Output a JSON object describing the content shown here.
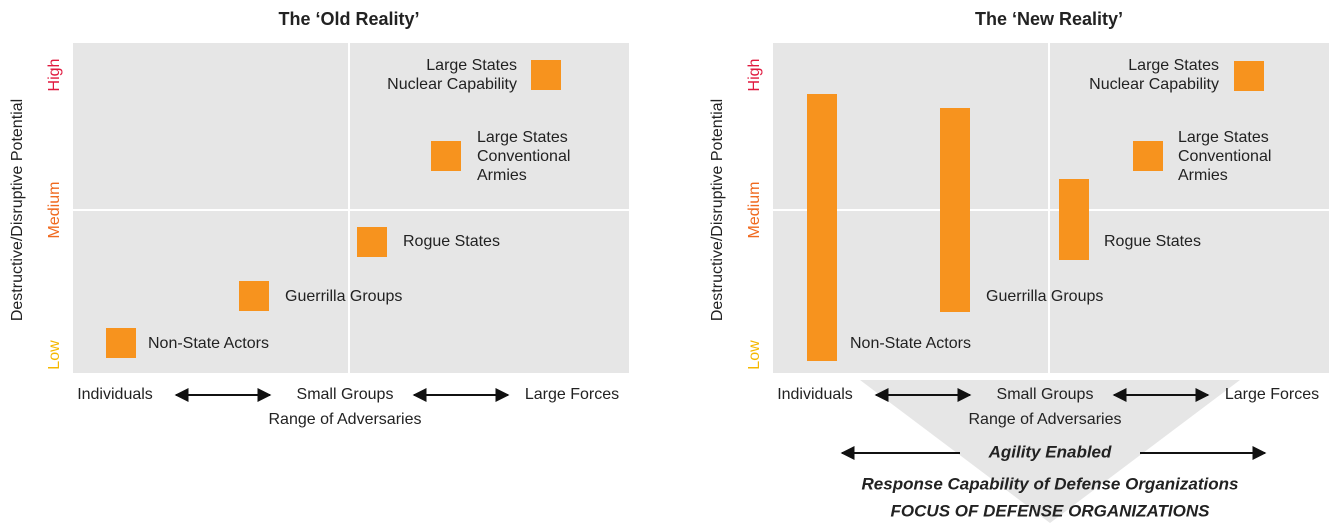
{
  "panels": [
    {
      "title": "The ‘Old Reality’",
      "y_axis_label": "Destructive/Disruptive Potential",
      "y_levels": [
        "High",
        "Medium",
        "Low"
      ],
      "x_levels": [
        "Individuals",
        "Small Groups",
        "Large Forces"
      ],
      "x_axis_label": "Range of Adversaries",
      "items": [
        {
          "label": [
            "Non-State Actors"
          ]
        },
        {
          "label": [
            "Guerrilla Groups"
          ]
        },
        {
          "label": [
            "Rogue States"
          ]
        },
        {
          "label": [
            "Large States",
            "Conventional",
            "Armies"
          ]
        },
        {
          "label": [
            "Large States",
            "Nuclear Capability"
          ]
        }
      ]
    },
    {
      "title": "The ‘New Reality’",
      "y_axis_label": "Destructive/Disruptive Potential",
      "y_levels": [
        "High",
        "Medium",
        "Low"
      ],
      "x_levels": [
        "Individuals",
        "Small Groups",
        "Large Forces"
      ],
      "x_axis_label": "Range of Adversaries",
      "items": [
        {
          "label": [
            "Non-State Actors"
          ]
        },
        {
          "label": [
            "Guerrilla Groups"
          ]
        },
        {
          "label": [
            "Rogue States"
          ]
        },
        {
          "label": [
            "Large States",
            "Conventional",
            "Armies"
          ]
        },
        {
          "label": [
            "Large States",
            "Nuclear Capability"
          ]
        }
      ]
    }
  ],
  "footer": {
    "agility": "Agility Enabled",
    "response": "Response Capability of Defense Organizations",
    "focus": "FOCUS OF DEFENSE ORGANIZATIONS"
  }
}
